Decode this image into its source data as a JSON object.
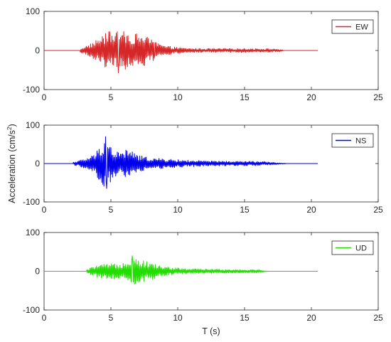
{
  "figure": {
    "ylabel_main": "Acceleration (cm/s",
    "ylabel_sup": "2",
    "ylabel_close": ")",
    "xlabel": "T (s)"
  },
  "colors": {
    "axes": "#262626",
    "EW": "#d62728",
    "NS": "#0000ee",
    "UD": "#22dd00"
  },
  "chart_data": [
    {
      "type": "line",
      "title": "",
      "xlabel": "",
      "ylabel": "",
      "xlim": [
        0,
        25
      ],
      "ylim": [
        -100,
        100
      ],
      "xticks": [
        0,
        5,
        10,
        15,
        20,
        25
      ],
      "yticks": [
        -100,
        0,
        100
      ],
      "grid": false,
      "legend_position": "top-right",
      "series": [
        {
          "name": "EW",
          "color": "#d62728",
          "t_start": 0,
          "t_end": 20.5,
          "onset": 2.7,
          "decay_to": 18,
          "peak_pos": 48,
          "peak_neg": -57,
          "envelope": [
            [
              2.7,
              5
            ],
            [
              3.5,
              18
            ],
            [
              4.2,
              35
            ],
            [
              4.8,
              48
            ],
            [
              5.5,
              52
            ],
            [
              6.5,
              45
            ],
            [
              7.5,
              40
            ],
            [
              8.2,
              25
            ],
            [
              9.0,
              12
            ],
            [
              10.5,
              6
            ],
            [
              12.0,
              5
            ],
            [
              14.0,
              5
            ],
            [
              16.0,
              5
            ],
            [
              17.5,
              4
            ],
            [
              18.0,
              0
            ]
          ]
        },
        {
          "name": "NS",
          "color": "#0000ee",
          "t_start": 0,
          "t_end": 20.5,
          "onset": 2.2,
          "decay_to": 18.3,
          "peak_pos": 70,
          "peak_neg": -65,
          "envelope": [
            [
              2.2,
              4
            ],
            [
              3.0,
              12
            ],
            [
              3.8,
              25
            ],
            [
              4.3,
              55
            ],
            [
              4.6,
              70
            ],
            [
              5.2,
              35
            ],
            [
              5.8,
              30
            ],
            [
              6.3,
              40
            ],
            [
              7.0,
              22
            ],
            [
              8.0,
              15
            ],
            [
              10.0,
              10
            ],
            [
              12.0,
              7
            ],
            [
              14.0,
              6
            ],
            [
              16.0,
              6
            ],
            [
              18.3,
              0
            ]
          ]
        },
        {
          "name": "UD",
          "color": "#22dd00",
          "t_start": 0,
          "t_end": 20.5,
          "onset": 3.2,
          "decay_to": 16.8,
          "peak_pos": 40,
          "peak_neg": -28,
          "envelope": [
            [
              3.2,
              4
            ],
            [
              3.8,
              15
            ],
            [
              4.5,
              18
            ],
            [
              5.5,
              20
            ],
            [
              6.0,
              25
            ],
            [
              6.6,
              40
            ],
            [
              7.2,
              30
            ],
            [
              8.0,
              22
            ],
            [
              9.0,
              12
            ],
            [
              10.5,
              7
            ],
            [
              12.0,
              6
            ],
            [
              14.0,
              5
            ],
            [
              16.0,
              4
            ],
            [
              16.8,
              0
            ]
          ]
        }
      ]
    }
  ]
}
